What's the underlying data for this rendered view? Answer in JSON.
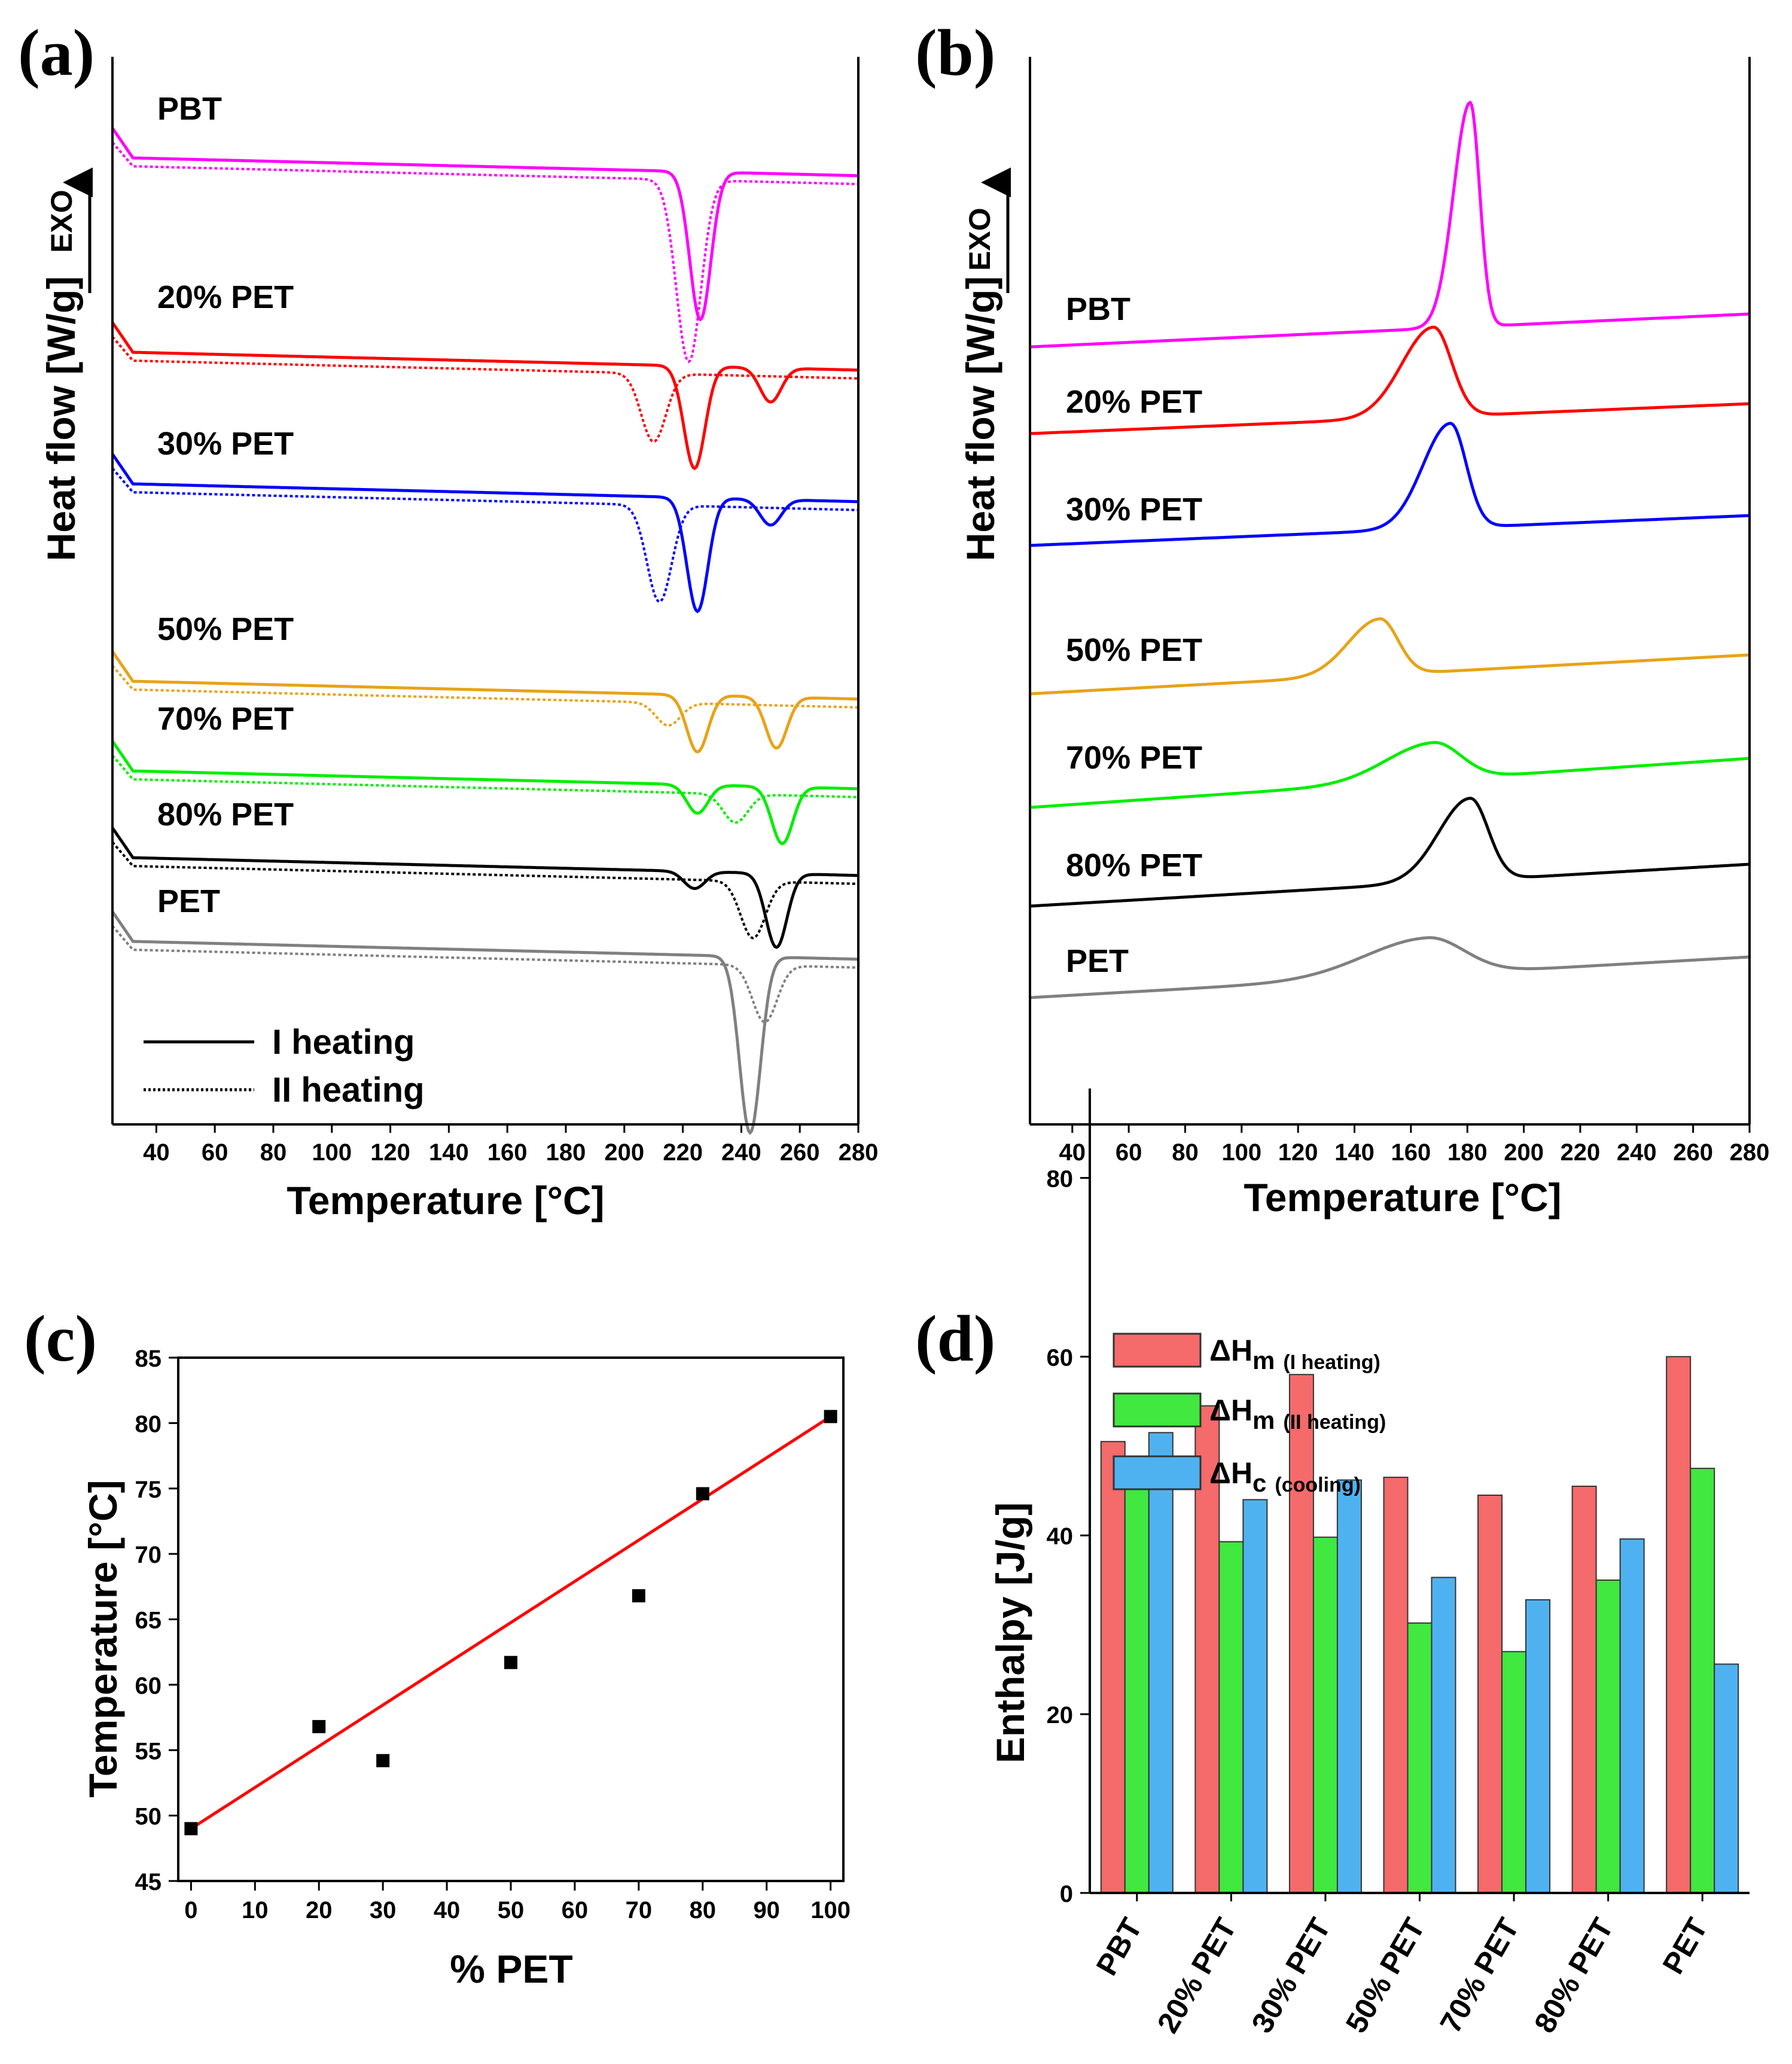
{
  "panels": {
    "a": {
      "letter": "(a)"
    },
    "b": {
      "letter": "(b)"
    },
    "c": {
      "letter": "(c)"
    },
    "d": {
      "letter": "(d)"
    }
  },
  "chart_data": [
    {
      "id": "a",
      "type": "line",
      "title": "",
      "xlabel": "Temperature [°C]",
      "ylabel": "Heat flow [W/g]",
      "exo_label": "EXO",
      "xlim": [
        25,
        280
      ],
      "xticks": [
        40,
        60,
        80,
        100,
        120,
        140,
        160,
        180,
        200,
        220,
        240,
        260,
        280
      ],
      "legend": {
        "solid": "I heating",
        "dotted": "II heating"
      },
      "series": [
        {
          "name": "PBT",
          "color": "#ff00ff",
          "first_heating_peaks": [
            {
              "x": 226,
              "depth": 2.6
            }
          ],
          "second_heating_peaks": [
            {
              "x": 222,
              "depth": 3.2
            }
          ]
        },
        {
          "name": "20% PET",
          "color": "#ff0000",
          "first_heating_peaks": [
            {
              "x": 224,
              "depth": 1.8
            },
            {
              "x": 250,
              "depth": 0.6
            }
          ],
          "second_heating_peaks": [
            {
              "x": 210,
              "depth": 1.2
            }
          ]
        },
        {
          "name": "30% PET",
          "color": "#0000ff",
          "first_heating_peaks": [
            {
              "x": 225,
              "depth": 2.0
            },
            {
              "x": 250,
              "depth": 0.45
            }
          ],
          "second_heating_peaks": [
            {
              "x": 212,
              "depth": 1.7
            }
          ]
        },
        {
          "name": "50% PET",
          "color": "#e8a317",
          "first_heating_peaks": [
            {
              "x": 225,
              "depth": 1.0
            },
            {
              "x": 252,
              "depth": 0.9
            }
          ],
          "second_heating_peaks": [
            {
              "x": 215,
              "depth": 0.4
            }
          ]
        },
        {
          "name": "70% PET",
          "color": "#00ee00",
          "first_heating_peaks": [
            {
              "x": 225,
              "depth": 0.5
            },
            {
              "x": 254,
              "depth": 1.0
            }
          ],
          "second_heating_peaks": [
            {
              "x": 238,
              "depth": 0.5
            }
          ]
        },
        {
          "name": "80% PET",
          "color": "#000000",
          "first_heating_peaks": [
            {
              "x": 224,
              "depth": 0.3
            },
            {
              "x": 252,
              "depth": 1.3
            }
          ],
          "second_heating_peaks": [
            {
              "x": 244,
              "depth": 1.0
            }
          ]
        },
        {
          "name": "PET",
          "color": "#808080",
          "first_heating_peaks": [
            {
              "x": 243,
              "depth": 3.1
            }
          ],
          "second_heating_peaks": [
            {
              "x": 248,
              "depth": 1.0
            }
          ]
        }
      ]
    },
    {
      "id": "b",
      "type": "line",
      "title": "",
      "xlabel": "Temperature [°C]",
      "ylabel": "Heat flow [W/g]",
      "exo_label": "EXO",
      "xlim": [
        25,
        280
      ],
      "xticks": [
        40,
        60,
        80,
        100,
        120,
        140,
        160,
        180,
        200,
        220,
        240,
        260,
        280
      ],
      "series": [
        {
          "name": "PBT",
          "color": "#ff00ff",
          "peak_x": 181,
          "peak_height": 3.0
        },
        {
          "name": "20% PET",
          "color": "#ff0000",
          "peak_x": 168,
          "peak_height": 1.2
        },
        {
          "name": "30% PET",
          "color": "#0000ff",
          "peak_x": 174,
          "peak_height": 1.4
        },
        {
          "name": "50% PET",
          "color": "#e8a317",
          "peak_x": 149,
          "peak_height": 0.75
        },
        {
          "name": "70% PET",
          "color": "#00ee00",
          "peak_x": 168,
          "peak_height": 0.5
        },
        {
          "name": "80% PET",
          "color": "#000000",
          "peak_x": 181,
          "peak_height": 1.1
        },
        {
          "name": "PET",
          "color": "#808080",
          "peak_x": 166,
          "peak_height": 0.5
        }
      ]
    },
    {
      "id": "c",
      "type": "scatter",
      "title": "",
      "xlabel": "% PET",
      "ylabel": "Temperature [°C]",
      "xlim": [
        -2,
        102
      ],
      "ylim": [
        45,
        85
      ],
      "xticks": [
        0,
        10,
        20,
        30,
        40,
        50,
        60,
        70,
        80,
        90,
        100
      ],
      "yticks": [
        45,
        50,
        55,
        60,
        65,
        70,
        75,
        80,
        85
      ],
      "x": [
        0,
        20,
        30,
        50,
        70,
        80,
        100
      ],
      "y": [
        49.0,
        56.8,
        54.2,
        61.7,
        66.8,
        74.6,
        80.5
      ],
      "fit_line": {
        "x": [
          0,
          100
        ],
        "y": [
          49.0,
          80.5
        ],
        "color": "#ff0000"
      }
    },
    {
      "id": "d",
      "type": "bar",
      "title": "",
      "xlabel": "",
      "ylabel": "Enthalpy [J/g]",
      "ylim": [
        0,
        90
      ],
      "yticks": [
        0,
        20,
        40,
        60,
        80
      ],
      "categories": [
        "PBT",
        "20% PET",
        "30% PET",
        "50% PET",
        "70% PET",
        "80% PET",
        "PET"
      ],
      "series": [
        {
          "name": "ΔH",
          "sub": "m",
          "note": "(I heating)",
          "color": "#f56a6a",
          "values": [
            50.5,
            54.5,
            58,
            46.5,
            44.5,
            45.5,
            60
          ]
        },
        {
          "name": "ΔH",
          "sub": "m",
          "note": "(II heating)",
          "color": "#40e840",
          "values": [
            46.3,
            39.3,
            39.8,
            30.2,
            27,
            35,
            47.5
          ]
        },
        {
          "name": "ΔH",
          "sub": "c",
          "note": "(cooling)",
          "color": "#4fb2f0",
          "values": [
            51.5,
            44,
            46.2,
            35.3,
            32.8,
            39.6,
            25.6
          ]
        }
      ]
    }
  ]
}
